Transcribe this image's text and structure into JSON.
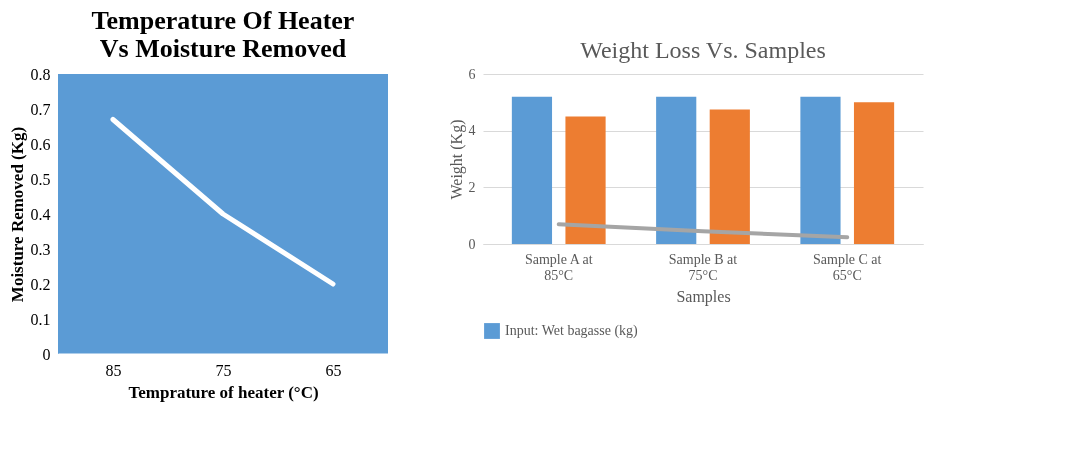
{
  "chart_data": [
    {
      "type": "line",
      "title": [
        "Temperature Of Heater",
        "Vs Moisture Removed"
      ],
      "xlabel": "Temprature of heater (°C)",
      "ylabel": "Moisture Removed (Kg)",
      "categories": [
        "85",
        "75",
        "65"
      ],
      "series": [
        {
          "color": "#ffffff",
          "values": [
            0.67,
            0.4,
            0.2
          ]
        }
      ],
      "ylim": [
        0,
        0.8
      ],
      "yticks": [
        0,
        0.1,
        0.2,
        0.3,
        0.4,
        0.5,
        0.6,
        0.7,
        0.8
      ],
      "grid": false,
      "marker": "none",
      "line_style": "solid"
    },
    {
      "type": "bar",
      "title": "Weight Loss Vs. Samples",
      "xlabel": "Samples",
      "ylabel": "Weight (Kg)",
      "categories": [
        "Sample A at 85°C",
        "Sample B at 75°C",
        "Sample C at 65°C"
      ],
      "series": [
        {
          "name": "Input: Wet bagasse (kg)",
          "color": "#5b9bd5",
          "values": [
            5.2,
            5.2,
            5.2
          ]
        },
        {
          "color": "#ed7d31",
          "values": [
            4.5,
            4.75,
            5.0
          ]
        },
        {
          "type": "line",
          "color": "#a5a5a5",
          "values": [
            0.7,
            0.45,
            0.24
          ]
        }
      ],
      "ylim": [
        0,
        6
      ],
      "yticks": [
        0,
        2,
        4,
        6
      ],
      "grid": "y",
      "legend": "bottom"
    }
  ]
}
